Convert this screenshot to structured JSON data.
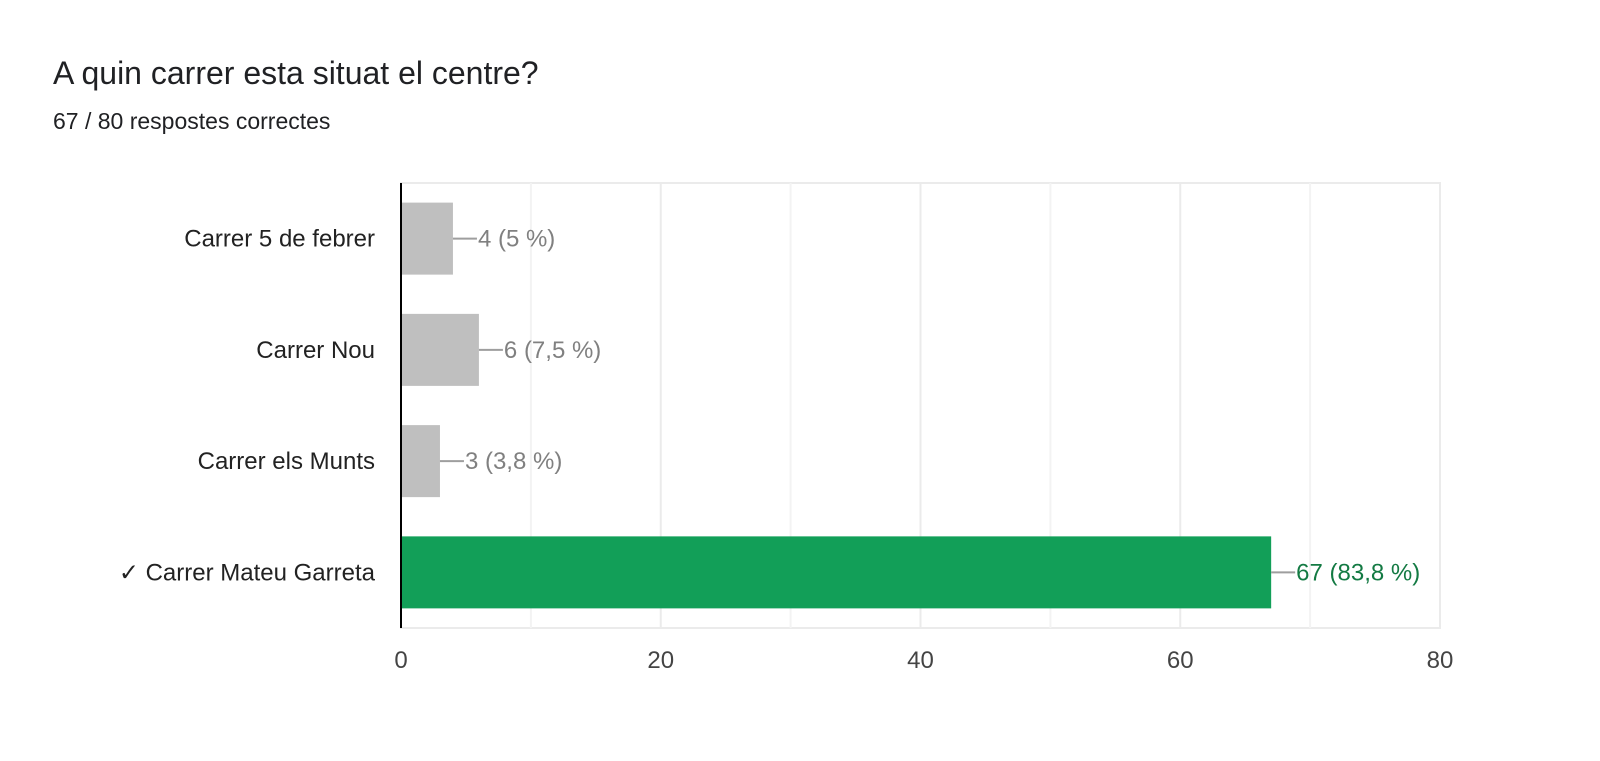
{
  "question": {
    "title": "A quin carrer esta situat el centre?",
    "subtitle": "67 / 80 respostes correctes"
  },
  "colors": {
    "bar_default": "#bfbfbf",
    "bar_correct": "#129f58",
    "label_default": "#808080",
    "label_correct": "#137a43",
    "grid": "#ebebeb",
    "axis": "#000000"
  },
  "chart_data": {
    "type": "bar",
    "orientation": "horizontal",
    "categories": [
      "Carrer 5 de febrer",
      "Carrer Nou",
      "Carrer els Munts",
      "✓ Carrer Mateu Garreta"
    ],
    "values": [
      4,
      6,
      3,
      67
    ],
    "value_labels": [
      "4 (5 %)",
      "6 (7,5 %)",
      "3 (3,8 %)",
      "67 (83,8 %)"
    ],
    "correct": [
      false,
      false,
      false,
      true
    ],
    "xlim": [
      0,
      80
    ],
    "xticks": [
      0,
      20,
      40,
      60,
      80
    ],
    "minor_grid": [
      10,
      30,
      50,
      70
    ],
    "grid": true
  }
}
